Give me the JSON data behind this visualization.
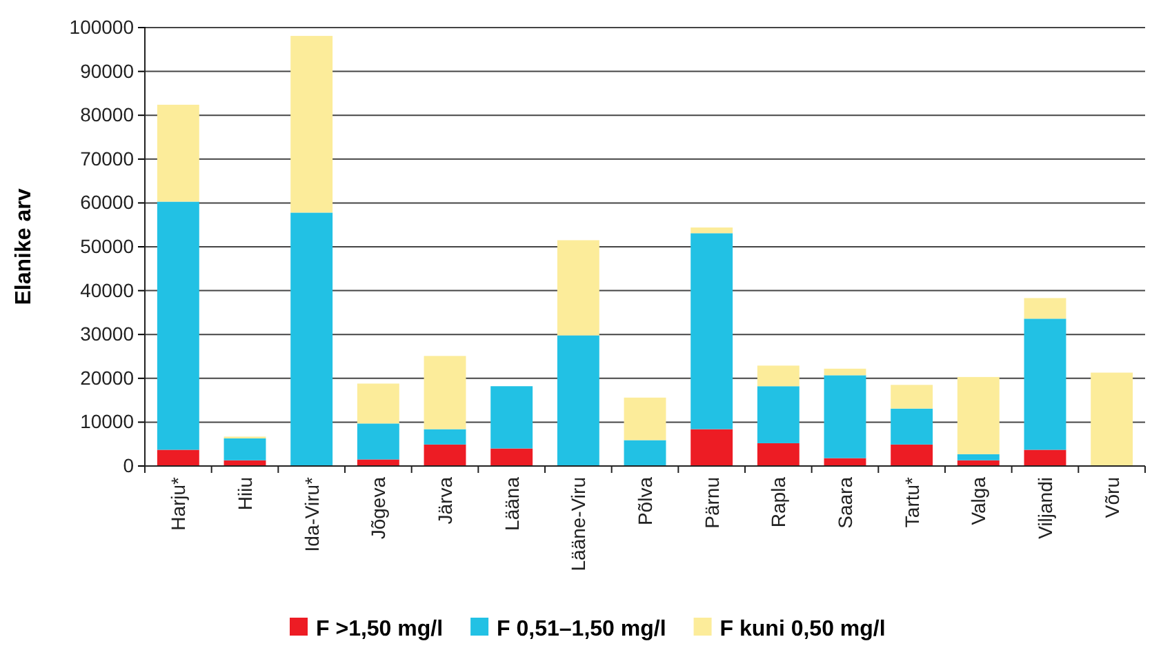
{
  "chart_data": {
    "type": "bar",
    "stacked": true,
    "ylabel": "Elanike arv",
    "categories": [
      "Harju*",
      "Hiiu",
      "Ida-Viru*",
      "Jõgeva",
      "Järva",
      "Lääna",
      "Lääne-Viru",
      "Põlva",
      "Pärnu",
      "Rapla",
      "Saara",
      "Tartu*",
      "Valga",
      "Viljandi",
      "Võru"
    ],
    "series": [
      {
        "name": "F >1,50 mg/l",
        "color": "#ed1c24",
        "values": [
          3700,
          1300,
          0,
          1500,
          4900,
          4000,
          0,
          0,
          8400,
          5200,
          1800,
          4900,
          1300,
          3700,
          0
        ]
      },
      {
        "name": "F 0,51–1,50 mg/l",
        "color": "#22c1e4",
        "values": [
          56600,
          5000,
          57800,
          8200,
          3500,
          14200,
          29800,
          5900,
          44700,
          13000,
          18900,
          8200,
          1400,
          29900,
          0
        ]
      },
      {
        "name": "F kuni 0,50 mg/l",
        "color": "#fcec9a",
        "values": [
          22100,
          400,
          40300,
          9100,
          16700,
          0,
          21700,
          9700,
          1300,
          4700,
          1500,
          5400,
          17600,
          4700,
          21300
        ]
      }
    ],
    "ylim": [
      0,
      100000
    ],
    "yticks": [
      0,
      10000,
      20000,
      30000,
      40000,
      50000,
      60000,
      70000,
      80000,
      90000,
      100000
    ],
    "grid": "y",
    "legend": "bottom"
  }
}
